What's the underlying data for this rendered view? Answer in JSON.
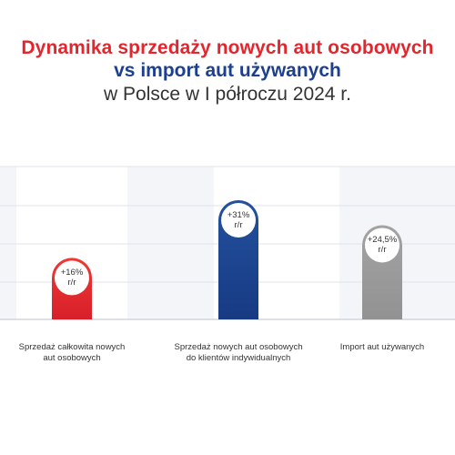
{
  "title": {
    "line1": "Dynamika sprzedaży nowych aut osobowych",
    "line2": "vs import aut używanych",
    "line3": "w Polsce w I półroczu 2024 r."
  },
  "colors": {
    "title_red": "#e3262d",
    "title_blue": "#1d3f8f",
    "bar_red": "#e3262d",
    "bar_blue": "#1d3f8f",
    "bar_gray": "#9a9a9a",
    "stripe": "#f3f5f9"
  },
  "chart_data": {
    "type": "bar",
    "title": "Dynamika sprzedaży nowych aut osobowych vs import aut używanych w Polsce w I półroczu 2024 r.",
    "categories": [
      "Sprzedaż całkowita nowych aut osobowych",
      "Sprzedaż nowych aut osobowych do klientów indywidualnych",
      "Import aut używanych"
    ],
    "values": [
      16,
      31,
      24.5
    ],
    "unit": "% r/r",
    "data_labels": [
      {
        "value": "+16%",
        "unit": "r/r"
      },
      {
        "value": "+31%",
        "unit": "r/r"
      },
      {
        "value": "+24,5%",
        "unit": "r/r"
      }
    ],
    "label_lines": [
      [
        "Sprzedaż całkowita nowych",
        "aut osobowych"
      ],
      [
        "Sprzedaż nowych aut osobowych",
        "do klientów indywidualnych"
      ],
      [
        "Import aut używanych"
      ]
    ],
    "bar_colors": [
      "#e3262d",
      "#1d3f8f",
      "#9a9a9a"
    ],
    "ylim": [
      0,
      31
    ],
    "grid": true,
    "legend": "none",
    "xlabel": "",
    "ylabel": ""
  }
}
